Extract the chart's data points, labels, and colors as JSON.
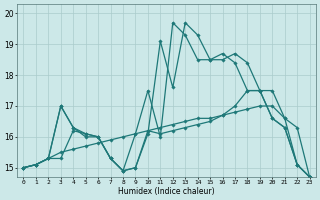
{
  "xlabel": "Humidex (Indice chaleur)",
  "xlim": [
    -0.5,
    23.5
  ],
  "ylim": [
    14.7,
    20.3
  ],
  "yticks": [
    15,
    16,
    17,
    18,
    19,
    20
  ],
  "xticks": [
    0,
    1,
    2,
    3,
    4,
    5,
    6,
    7,
    8,
    9,
    10,
    11,
    12,
    13,
    14,
    15,
    16,
    17,
    18,
    19,
    20,
    21,
    22,
    23
  ],
  "bg_color": "#cce8e8",
  "grid_color": "#aacccc",
  "line_color": "#1e7878",
  "line_width": 0.9,
  "marker": "D",
  "marker_size": 1.8,
  "lines": [
    {
      "x": [
        0,
        1,
        2,
        3,
        4,
        5,
        6,
        7,
        8,
        9,
        10,
        11,
        12,
        13,
        14,
        15,
        16,
        17,
        18,
        19,
        20,
        21,
        22,
        23
      ],
      "y": [
        15.0,
        15.1,
        15.3,
        15.5,
        15.6,
        15.7,
        15.8,
        15.9,
        16.0,
        16.1,
        16.2,
        16.3,
        16.4,
        16.5,
        16.6,
        16.6,
        16.7,
        16.8,
        16.9,
        17.0,
        17.0,
        16.6,
        16.3,
        14.7
      ]
    },
    {
      "x": [
        0,
        1,
        2,
        3,
        4,
        5,
        6,
        7,
        8,
        9,
        10,
        11,
        12,
        13,
        14,
        15,
        16,
        17,
        18,
        19,
        20,
        21,
        22,
        23
      ],
      "y": [
        15.0,
        15.1,
        15.3,
        17.0,
        16.3,
        16.1,
        16.0,
        15.3,
        14.9,
        15.0,
        16.1,
        19.1,
        17.6,
        19.7,
        19.3,
        18.5,
        18.5,
        18.7,
        18.4,
        17.5,
        16.6,
        16.3,
        15.1,
        14.7
      ]
    },
    {
      "x": [
        0,
        1,
        2,
        3,
        4,
        5,
        6,
        7,
        8,
        9,
        10,
        11,
        12,
        13,
        14,
        15,
        16,
        17,
        18,
        19,
        20,
        21,
        22,
        23
      ],
      "y": [
        15.0,
        15.1,
        15.3,
        15.3,
        16.2,
        16.1,
        16.0,
        15.3,
        14.9,
        16.1,
        17.5,
        16.0,
        19.7,
        19.3,
        18.5,
        18.5,
        18.7,
        18.4,
        17.5,
        17.5,
        16.6,
        16.3,
        15.1,
        14.7
      ]
    },
    {
      "x": [
        0,
        1,
        2,
        3,
        4,
        5,
        6,
        7,
        8,
        9,
        10,
        11,
        12,
        13,
        14,
        15,
        16,
        17,
        18,
        19,
        20,
        21,
        22,
        23
      ],
      "y": [
        15.0,
        15.1,
        15.3,
        17.0,
        16.3,
        16.0,
        16.0,
        15.3,
        14.9,
        15.0,
        16.2,
        16.1,
        16.2,
        16.3,
        16.4,
        16.5,
        16.7,
        17.0,
        17.5,
        17.5,
        17.5,
        16.6,
        15.1,
        14.7
      ]
    }
  ]
}
